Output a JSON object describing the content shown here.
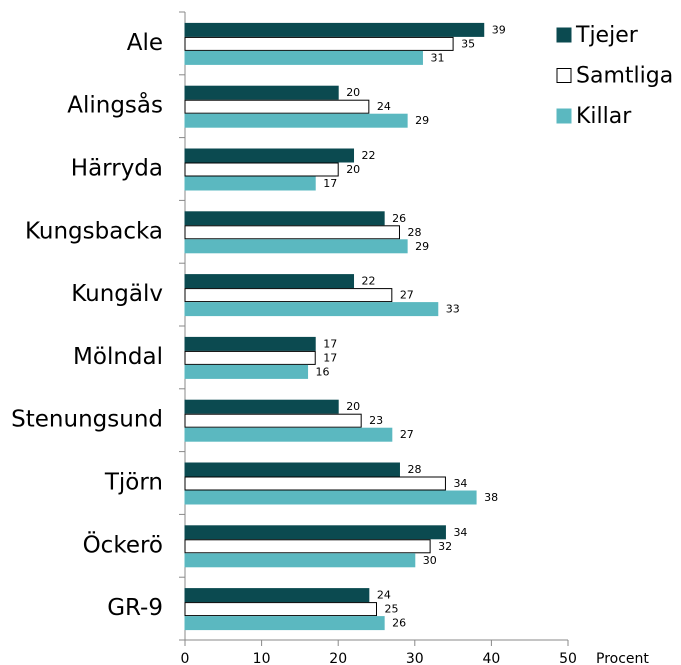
{
  "chart_data": {
    "type": "bar",
    "orientation": "horizontal",
    "categories": [
      "Ale",
      "Alingsås",
      "Härryda",
      "Kungsbacka",
      "Kungälv",
      "Mölndal",
      "Stenungsund",
      "Tjörn",
      "Öckerö",
      "GR-9"
    ],
    "series": [
      {
        "name": "Tjejer",
        "color": "#0b4a50",
        "values": [
          39,
          20,
          22,
          26,
          22,
          17,
          20,
          28,
          34,
          24
        ]
      },
      {
        "name": "Samtliga",
        "color": "#ffffff",
        "values": [
          35,
          24,
          20,
          28,
          27,
          17,
          23,
          34,
          32,
          25
        ]
      },
      {
        "name": "Killar",
        "color": "#5bb8c0",
        "values": [
          31,
          29,
          17,
          29,
          33,
          16,
          27,
          38,
          30,
          26
        ]
      }
    ],
    "x_label": "Procent",
    "xlim": [
      0,
      50
    ],
    "xticks": [
      0,
      10,
      20,
      30,
      40,
      50
    ],
    "legend": "top-right"
  }
}
